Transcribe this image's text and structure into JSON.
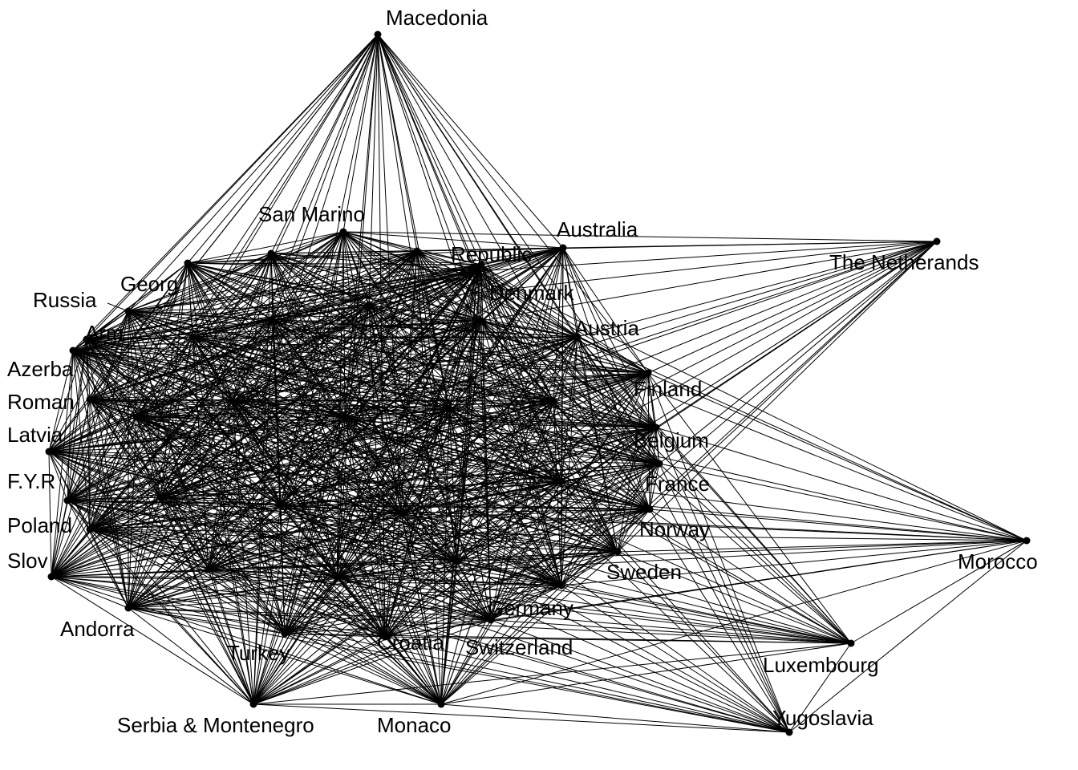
{
  "graph": {
    "nodes": [
      {
        "id": "macedonia",
        "label": "Macedonia"
      },
      {
        "id": "san-marino",
        "label": "San Marino"
      },
      {
        "id": "australia",
        "label": "Australia"
      },
      {
        "id": "the-netherlands",
        "label": "The Netherands"
      },
      {
        "id": "republic",
        "label": "Republic"
      },
      {
        "id": "georgia",
        "label": "Georg"
      },
      {
        "id": "russia",
        "label": "Russia"
      },
      {
        "id": "armenia",
        "label": "Arm"
      },
      {
        "id": "azerbaijan",
        "label": "Azerba"
      },
      {
        "id": "romania",
        "label": "Roman"
      },
      {
        "id": "latvia",
        "label": "Latvia"
      },
      {
        "id": "fyrom",
        "label": "F.Y.R"
      },
      {
        "id": "poland",
        "label": "Poland"
      },
      {
        "id": "slovenia",
        "label": "Slov"
      },
      {
        "id": "andorra",
        "label": "Andorra"
      },
      {
        "id": "turkey",
        "label": "Turkey"
      },
      {
        "id": "serbia",
        "label": "Serbia & Montenegro"
      },
      {
        "id": "croatia",
        "label": "Croatia"
      },
      {
        "id": "monaco",
        "label": "Monaco"
      },
      {
        "id": "switzerland",
        "label": "Switzerland"
      },
      {
        "id": "germany",
        "label": "Germany"
      },
      {
        "id": "sweden",
        "label": "Sweden"
      },
      {
        "id": "norway",
        "label": "Norway"
      },
      {
        "id": "france",
        "label": "France"
      },
      {
        "id": "belgium",
        "label": "Belgium"
      },
      {
        "id": "finland",
        "label": "Finland"
      },
      {
        "id": "austria",
        "label": "Austria"
      },
      {
        "id": "denmark",
        "label": "Denmark"
      },
      {
        "id": "morocco",
        "label": "Morocco"
      },
      {
        "id": "luxembourg",
        "label": "Luxembourg"
      },
      {
        "id": "yugoslavia",
        "label": "Yugoslavia"
      },
      {
        "id": "n1",
        "label": ""
      },
      {
        "id": "n2",
        "label": ""
      },
      {
        "id": "n3",
        "label": ""
      },
      {
        "id": "n4",
        "label": ""
      },
      {
        "id": "n5",
        "label": ""
      },
      {
        "id": "n6",
        "label": ""
      },
      {
        "id": "n7",
        "label": ""
      },
      {
        "id": "n8",
        "label": ""
      },
      {
        "id": "n9",
        "label": ""
      },
      {
        "id": "n10",
        "label": ""
      },
      {
        "id": "n11",
        "label": ""
      },
      {
        "id": "n12",
        "label": ""
      },
      {
        "id": "n13",
        "label": ""
      },
      {
        "id": "n14",
        "label": ""
      },
      {
        "id": "n15",
        "label": ""
      },
      {
        "id": "n16",
        "label": ""
      },
      {
        "id": "n17",
        "label": ""
      },
      {
        "id": "n18",
        "label": ""
      }
    ],
    "dense_core": [
      "georgia",
      "russia",
      "armenia",
      "azerbaijan",
      "romania",
      "latvia",
      "fyrom",
      "poland",
      "slovenia",
      "andorra",
      "turkey",
      "serbia",
      "croatia",
      "monaco",
      "switzerland",
      "germany",
      "sweden",
      "norway",
      "france",
      "belgium",
      "finland",
      "austria",
      "denmark",
      "republic",
      "australia",
      "san-marino",
      "n1",
      "n2",
      "n3",
      "n4",
      "n5",
      "n6",
      "n7",
      "n8",
      "n9",
      "n10",
      "n11",
      "n12",
      "n13",
      "n14",
      "n15",
      "n16",
      "n17",
      "n18"
    ],
    "edges": [
      [
        "macedonia",
        "georgia"
      ],
      [
        "macedonia",
        "russia"
      ],
      [
        "macedonia",
        "armenia"
      ],
      [
        "macedonia",
        "azerbaijan"
      ],
      [
        "macedonia",
        "romania"
      ],
      [
        "macedonia",
        "latvia"
      ],
      [
        "macedonia",
        "fyrom"
      ],
      [
        "macedonia",
        "san-marino"
      ],
      [
        "macedonia",
        "republic"
      ],
      [
        "macedonia",
        "australia"
      ],
      [
        "macedonia",
        "austria"
      ],
      [
        "macedonia",
        "finland"
      ],
      [
        "macedonia",
        "belgium"
      ],
      [
        "macedonia",
        "denmark"
      ],
      [
        "macedonia",
        "n1"
      ],
      [
        "macedonia",
        "n2"
      ],
      [
        "macedonia",
        "n3"
      ],
      [
        "macedonia",
        "n4"
      ],
      [
        "macedonia",
        "n5"
      ],
      [
        "macedonia",
        "n6"
      ],
      [
        "macedonia",
        "n7"
      ],
      [
        "macedonia",
        "n8"
      ],
      [
        "macedonia",
        "n9"
      ],
      [
        "macedonia",
        "n10"
      ],
      [
        "macedonia",
        "n11"
      ],
      [
        "macedonia",
        "n12"
      ],
      [
        "macedonia",
        "n13"
      ],
      [
        "macedonia",
        "n14"
      ],
      [
        "macedonia",
        "n15"
      ],
      [
        "macedonia",
        "n16"
      ],
      [
        "macedonia",
        "n17"
      ],
      [
        "macedonia",
        "n18"
      ],
      [
        "macedonia",
        "france"
      ],
      [
        "macedonia",
        "norway"
      ],
      [
        "macedonia",
        "croatia"
      ],
      [
        "macedonia",
        "germany"
      ],
      [
        "the-netherlands",
        "australia"
      ],
      [
        "the-netherlands",
        "republic"
      ],
      [
        "the-netherlands",
        "denmark"
      ],
      [
        "the-netherlands",
        "austria"
      ],
      [
        "the-netherlands",
        "finland"
      ],
      [
        "the-netherlands",
        "belgium"
      ],
      [
        "the-netherlands",
        "france"
      ],
      [
        "the-netherlands",
        "norway"
      ],
      [
        "the-netherlands",
        "sweden"
      ],
      [
        "the-netherlands",
        "germany"
      ],
      [
        "the-netherlands",
        "switzerland"
      ],
      [
        "the-netherlands",
        "n5"
      ],
      [
        "the-netherlands",
        "n6"
      ],
      [
        "the-netherlands",
        "n9"
      ],
      [
        "the-netherlands",
        "n10"
      ],
      [
        "the-netherlands",
        "n12"
      ],
      [
        "the-netherlands",
        "n13"
      ],
      [
        "the-netherlands",
        "n14"
      ],
      [
        "the-netherlands",
        "n16"
      ],
      [
        "the-netherlands",
        "n17"
      ],
      [
        "the-netherlands",
        "n18"
      ],
      [
        "the-netherlands",
        "san-marino"
      ],
      [
        "morocco",
        "finland"
      ],
      [
        "morocco",
        "belgium"
      ],
      [
        "morocco",
        "france"
      ],
      [
        "morocco",
        "norway"
      ],
      [
        "morocco",
        "sweden"
      ],
      [
        "morocco",
        "germany"
      ],
      [
        "morocco",
        "switzerland"
      ],
      [
        "morocco",
        "austria"
      ],
      [
        "morocco",
        "denmark"
      ],
      [
        "morocco",
        "luxembourg"
      ],
      [
        "morocco",
        "yugoslavia"
      ],
      [
        "morocco",
        "n6"
      ],
      [
        "morocco",
        "n10"
      ],
      [
        "morocco",
        "n13"
      ],
      [
        "morocco",
        "n14"
      ],
      [
        "morocco",
        "n16"
      ],
      [
        "morocco",
        "n17"
      ],
      [
        "morocco",
        "n18"
      ],
      [
        "morocco",
        "latvia"
      ],
      [
        "morocco",
        "poland"
      ],
      [
        "morocco",
        "croatia"
      ],
      [
        "morocco",
        "monaco"
      ],
      [
        "luxembourg",
        "yugoslavia"
      ],
      [
        "luxembourg",
        "finland"
      ],
      [
        "luxembourg",
        "belgium"
      ],
      [
        "luxembourg",
        "france"
      ],
      [
        "luxembourg",
        "norway"
      ],
      [
        "luxembourg",
        "sweden"
      ],
      [
        "luxembourg",
        "germany"
      ],
      [
        "luxembourg",
        "switzerland"
      ],
      [
        "luxembourg",
        "monaco"
      ],
      [
        "luxembourg",
        "croatia"
      ],
      [
        "luxembourg",
        "serbia"
      ],
      [
        "luxembourg",
        "turkey"
      ],
      [
        "luxembourg",
        "andorra"
      ],
      [
        "luxembourg",
        "slovenia"
      ],
      [
        "luxembourg",
        "poland"
      ],
      [
        "luxembourg",
        "austria"
      ],
      [
        "luxembourg",
        "denmark"
      ],
      [
        "luxembourg",
        "n6"
      ],
      [
        "luxembourg",
        "n9"
      ],
      [
        "luxembourg",
        "n10"
      ],
      [
        "luxembourg",
        "n13"
      ],
      [
        "luxembourg",
        "n14"
      ],
      [
        "luxembourg",
        "n15"
      ],
      [
        "luxembourg",
        "n16"
      ],
      [
        "luxembourg",
        "n17"
      ],
      [
        "luxembourg",
        "n18"
      ],
      [
        "luxembourg",
        "fyrom"
      ],
      [
        "yugoslavia",
        "monaco"
      ],
      [
        "yugoslavia",
        "serbia"
      ],
      [
        "yugoslavia",
        "switzerland"
      ],
      [
        "yugoslavia",
        "germany"
      ],
      [
        "yugoslavia",
        "sweden"
      ],
      [
        "yugoslavia",
        "norway"
      ],
      [
        "yugoslavia",
        "france"
      ],
      [
        "yugoslavia",
        "belgium"
      ],
      [
        "yugoslavia",
        "croatia"
      ],
      [
        "yugoslavia",
        "turkey"
      ],
      [
        "yugoslavia",
        "andorra"
      ],
      [
        "yugoslavia",
        "slovenia"
      ],
      [
        "yugoslavia",
        "poland"
      ],
      [
        "yugoslavia",
        "n9"
      ],
      [
        "yugoslavia",
        "n10"
      ],
      [
        "yugoslavia",
        "n13"
      ],
      [
        "yugoslavia",
        "n14"
      ],
      [
        "yugoslavia",
        "n15"
      ],
      [
        "yugoslavia",
        "n16"
      ],
      [
        "yugoslavia",
        "n17"
      ],
      [
        "yugoslavia",
        "n18"
      ],
      [
        "yugoslavia",
        "finland"
      ],
      [
        "yugoslavia",
        "austria"
      ]
    ]
  }
}
